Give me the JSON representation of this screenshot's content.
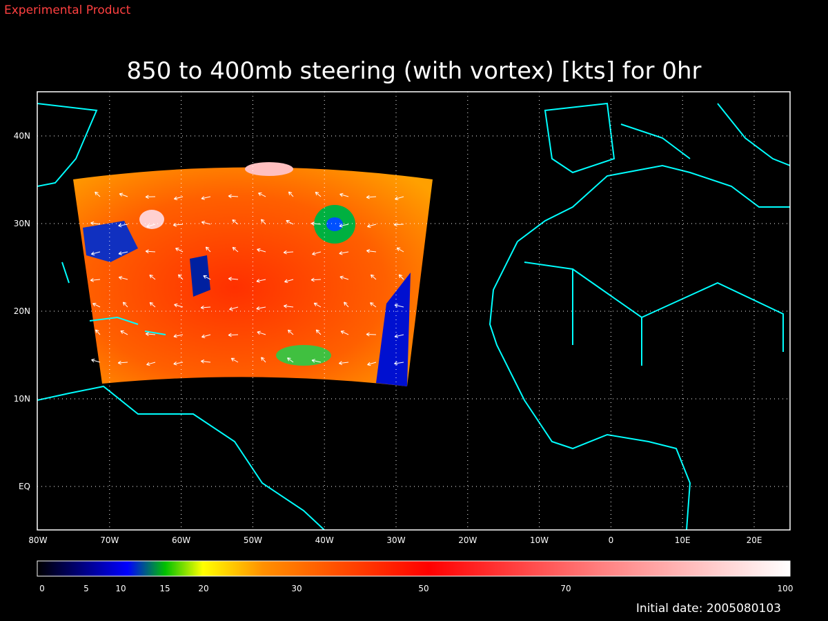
{
  "header": {
    "label": "Experimental Product"
  },
  "title": "850 to 400mb steering (with vortex) [kts] for 0hr",
  "map": {
    "lon_labels": [
      "80W",
      "70W",
      "60W",
      "50W",
      "40W",
      "30W",
      "20W",
      "10W",
      "0",
      "10E",
      "20E"
    ],
    "lat_labels": [
      "40N",
      "30N",
      "20N",
      "10N",
      "EQ"
    ]
  },
  "colorbar": {
    "labels": [
      0,
      5,
      10,
      15,
      20,
      30,
      50,
      70,
      100
    ]
  },
  "footer": "Initial date: 2005080103"
}
